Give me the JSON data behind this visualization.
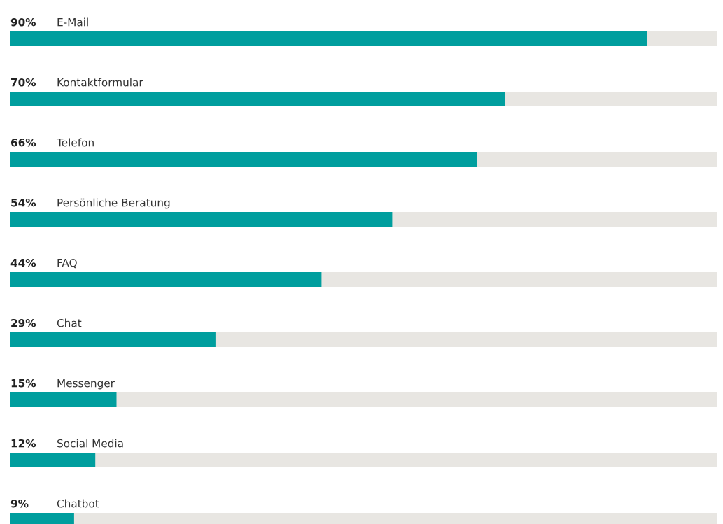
{
  "chart_data": {
    "type": "bar",
    "orientation": "horizontal",
    "categories": [
      "E-Mail",
      "Kontaktformular",
      "Telefon",
      "Persönliche Beratung",
      "FAQ",
      "Chat",
      "Messenger",
      "Social Media",
      "Chatbot"
    ],
    "values": [
      90,
      70,
      66,
      54,
      44,
      29,
      15,
      12,
      9
    ],
    "value_labels": [
      "90%",
      "70%",
      "66%",
      "54%",
      "44%",
      "29%",
      "15%",
      "12%",
      "9%"
    ],
    "color": "#009e9e",
    "xlim": [
      0,
      100
    ]
  }
}
